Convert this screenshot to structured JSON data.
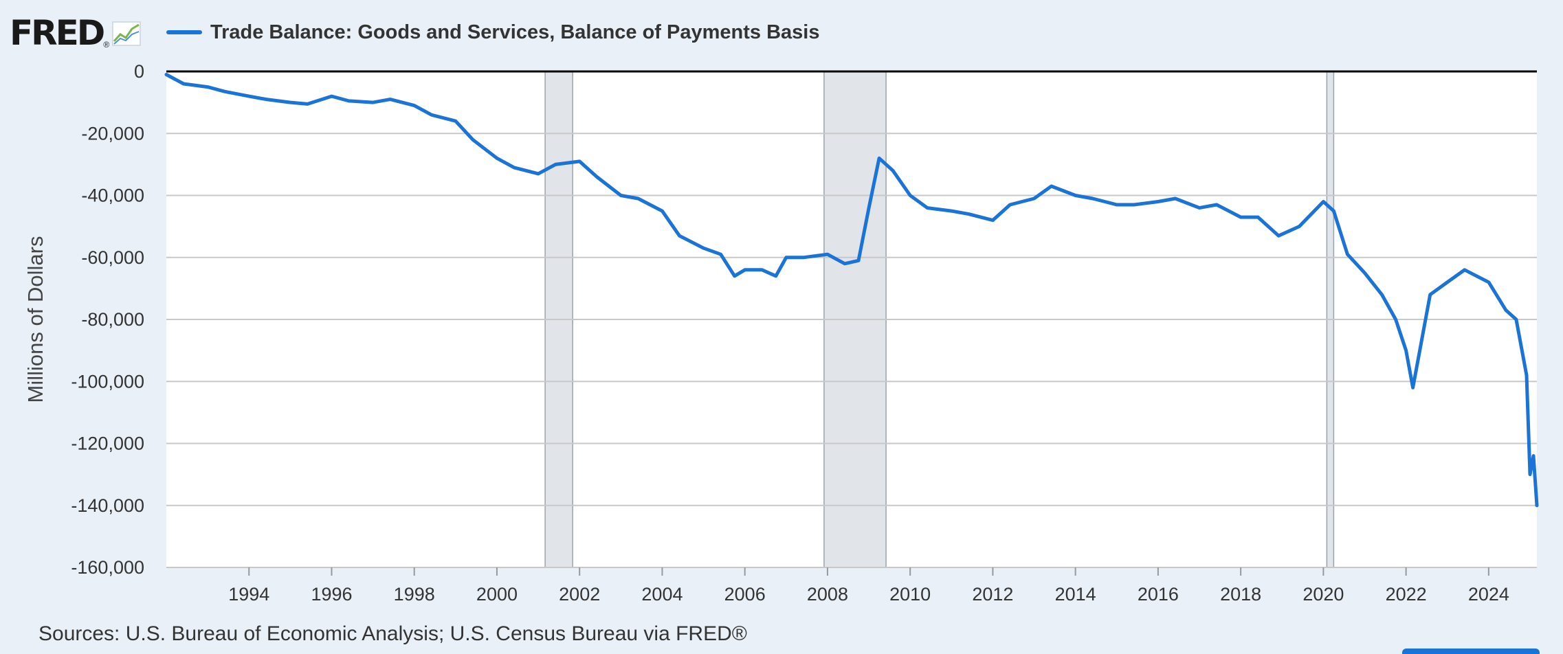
{
  "logo": {
    "text": "FRED",
    "reg": "®",
    "icon": "fred-graph-icon"
  },
  "legend": {
    "label": "Trade Balance: Goods and Services, Balance of Payments Basis",
    "color": "#1a73d6"
  },
  "source": "Sources: U.S. Bureau of Economic Analysis; U.S. Census Bureau via FRED®",
  "chart_data": {
    "type": "line",
    "title": "",
    "xlabel": "",
    "ylabel": "Millions of Dollars",
    "xlim": [
      "1992-01",
      "2025-03"
    ],
    "ylim": [
      -160000,
      0
    ],
    "yticks": [
      0,
      -20000,
      -40000,
      -60000,
      -80000,
      -100000,
      -120000,
      -140000,
      -160000
    ],
    "ytick_labels": [
      "0",
      "-20,000",
      "-40,000",
      "-60,000",
      "-80,000",
      "-100,000",
      "-120,000",
      "-140,000",
      "-160,000"
    ],
    "xticks": [
      "1994",
      "1996",
      "1998",
      "2000",
      "2002",
      "2004",
      "2006",
      "2008",
      "2010",
      "2012",
      "2014",
      "2016",
      "2018",
      "2020",
      "2022",
      "2024"
    ],
    "grid": true,
    "line_color": "#1a73d6",
    "recession_color": "#e1e5ea",
    "recessions": [
      {
        "start": "2001-03",
        "end": "2001-11"
      },
      {
        "start": "2007-12",
        "end": "2009-06"
      },
      {
        "start": "2020-02",
        "end": "2020-04"
      }
    ],
    "series": [
      {
        "name": "Trade Balance: Goods and Services, Balance of Payments Basis",
        "points": [
          [
            "1992-01",
            -1000
          ],
          [
            "1992-06",
            -4000
          ],
          [
            "1993-01",
            -5000
          ],
          [
            "1993-06",
            -6500
          ],
          [
            "1994-01",
            -8000
          ],
          [
            "1994-06",
            -9000
          ],
          [
            "1995-01",
            -10000
          ],
          [
            "1995-06",
            -10500
          ],
          [
            "1996-01",
            -8000
          ],
          [
            "1996-06",
            -9500
          ],
          [
            "1997-01",
            -10000
          ],
          [
            "1997-06",
            -9000
          ],
          [
            "1998-01",
            -11000
          ],
          [
            "1998-06",
            -14000
          ],
          [
            "1999-01",
            -16000
          ],
          [
            "1999-06",
            -22000
          ],
          [
            "2000-01",
            -28000
          ],
          [
            "2000-06",
            -31000
          ],
          [
            "2001-01",
            -33000
          ],
          [
            "2001-06",
            -30000
          ],
          [
            "2002-01",
            -29000
          ],
          [
            "2002-06",
            -34000
          ],
          [
            "2003-01",
            -40000
          ],
          [
            "2003-06",
            -41000
          ],
          [
            "2004-01",
            -45000
          ],
          [
            "2004-06",
            -53000
          ],
          [
            "2005-01",
            -57000
          ],
          [
            "2005-06",
            -59000
          ],
          [
            "2005-10",
            -66000
          ],
          [
            "2006-01",
            -64000
          ],
          [
            "2006-06",
            -64000
          ],
          [
            "2006-10",
            -66000
          ],
          [
            "2007-01",
            -60000
          ],
          [
            "2007-06",
            -60000
          ],
          [
            "2008-01",
            -59000
          ],
          [
            "2008-06",
            -62000
          ],
          [
            "2008-10",
            -61000
          ],
          [
            "2009-01",
            -44000
          ],
          [
            "2009-04",
            -28000
          ],
          [
            "2009-08",
            -32000
          ],
          [
            "2010-01",
            -40000
          ],
          [
            "2010-06",
            -44000
          ],
          [
            "2011-01",
            -45000
          ],
          [
            "2011-06",
            -46000
          ],
          [
            "2012-01",
            -48000
          ],
          [
            "2012-06",
            -43000
          ],
          [
            "2013-01",
            -41000
          ],
          [
            "2013-06",
            -37000
          ],
          [
            "2014-01",
            -40000
          ],
          [
            "2014-06",
            -41000
          ],
          [
            "2015-01",
            -43000
          ],
          [
            "2015-06",
            -43000
          ],
          [
            "2016-01",
            -42000
          ],
          [
            "2016-06",
            -41000
          ],
          [
            "2017-01",
            -44000
          ],
          [
            "2017-06",
            -43000
          ],
          [
            "2018-01",
            -47000
          ],
          [
            "2018-06",
            -47000
          ],
          [
            "2018-12",
            -53000
          ],
          [
            "2019-06",
            -50000
          ],
          [
            "2020-01",
            -42000
          ],
          [
            "2020-04",
            -45000
          ],
          [
            "2020-08",
            -59000
          ],
          [
            "2021-01",
            -65000
          ],
          [
            "2021-06",
            -72000
          ],
          [
            "2021-10",
            -80000
          ],
          [
            "2022-01",
            -90000
          ],
          [
            "2022-03",
            -102000
          ],
          [
            "2022-08",
            -72000
          ],
          [
            "2023-01",
            -68000
          ],
          [
            "2023-06",
            -64000
          ],
          [
            "2024-01",
            -68000
          ],
          [
            "2024-06",
            -77000
          ],
          [
            "2024-09",
            -80000
          ],
          [
            "2024-12",
            -98000
          ],
          [
            "2025-01",
            -130000
          ],
          [
            "2025-02",
            -124000
          ],
          [
            "2025-03",
            -140000
          ]
        ]
      }
    ]
  }
}
